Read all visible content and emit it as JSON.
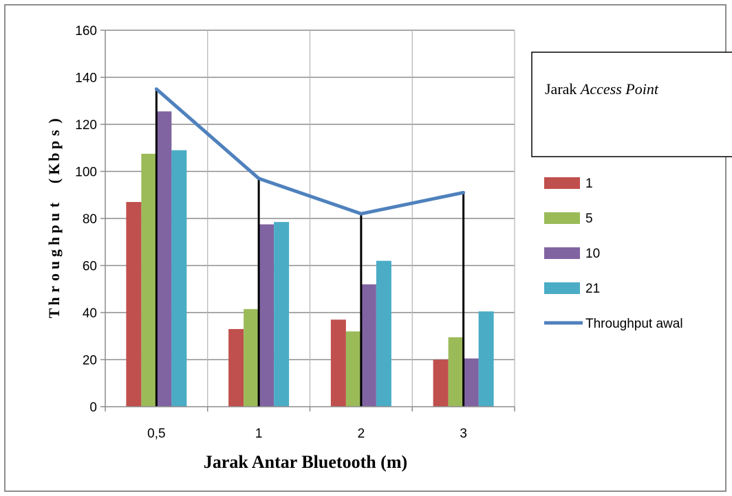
{
  "chart_data": {
    "type": "bar",
    "xlabel": "Jarak Antar Bluetooth (m)",
    "ylabel": "Throughput (Kbps)",
    "categories": [
      "0,5",
      "1",
      "2",
      "3"
    ],
    "ylim": [
      0,
      160
    ],
    "yticks": [
      0,
      20,
      40,
      60,
      80,
      100,
      120,
      140,
      160
    ],
    "grid": true,
    "legend_position": "right",
    "legend_title": {
      "plain": "Jarak ",
      "emphasis": "Access Point"
    },
    "series": [
      {
        "name": "1",
        "type": "bar",
        "color": "#C0504D",
        "values": [
          87,
          33,
          37,
          20
        ]
      },
      {
        "name": "5",
        "type": "bar",
        "color": "#9BBB59",
        "values": [
          107.5,
          41.5,
          32,
          29.5
        ]
      },
      {
        "name": "10",
        "type": "bar",
        "color": "#8064A2",
        "values": [
          125.5,
          77.5,
          52,
          20.5
        ]
      },
      {
        "name": "21",
        "type": "bar",
        "color": "#4BACC6",
        "values": [
          109,
          78.5,
          62,
          40.5
        ]
      },
      {
        "name": "Throughput awal",
        "type": "line",
        "color": "#4F81BD",
        "values": [
          135,
          97,
          82,
          91
        ]
      }
    ]
  }
}
